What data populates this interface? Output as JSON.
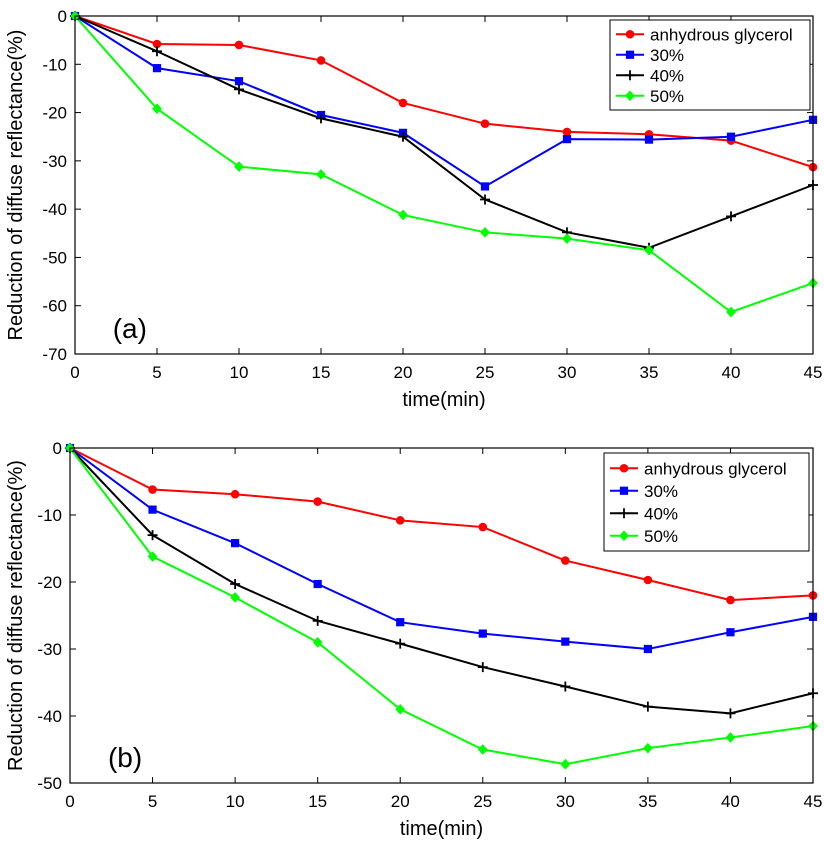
{
  "chart_data": [
    {
      "type": "line",
      "panel_label": "(a)",
      "xlabel": "time(min)",
      "ylabel": "Reduction of diffuse reflectance(%)",
      "x": [
        0,
        5,
        10,
        15,
        20,
        25,
        30,
        35,
        40,
        45
      ],
      "xlim": [
        0,
        45
      ],
      "ylim": [
        -70,
        0
      ],
      "xticks": [
        "0",
        "5",
        "10",
        "15",
        "20",
        "25",
        "30",
        "35",
        "40",
        "45"
      ],
      "yticks": [
        "0",
        "-10",
        "-20",
        "-30",
        "-40",
        "-50",
        "-60",
        "-70"
      ],
      "grid": false,
      "legend_position": "top-right",
      "series": [
        {
          "name": "anhydrous glycerol",
          "color": "#ff0000",
          "marker": "circle",
          "values": [
            0,
            -5.8,
            -6,
            -9.2,
            -18,
            -22.3,
            -24,
            -24.5,
            -25.8,
            -31.3
          ]
        },
        {
          "name": "30%",
          "color": "#0000ff",
          "marker": "square",
          "values": [
            0,
            -10.8,
            -13.5,
            -20.5,
            -24.2,
            -35.3,
            -25.5,
            -25.6,
            -25,
            -21.5
          ]
        },
        {
          "name": "40%",
          "color": "#000000",
          "marker": "plus",
          "values": [
            0,
            -7.3,
            -15.2,
            -21.2,
            -25,
            -38,
            -44.8,
            -48,
            -41.5,
            -35
          ]
        },
        {
          "name": "50%",
          "color": "#00ff00",
          "marker": "diamond",
          "values": [
            0,
            -19.2,
            -31.2,
            -32.8,
            -41.2,
            -44.8,
            -46.1,
            -48.5,
            -61.3,
            -55.3
          ]
        }
      ]
    },
    {
      "type": "line",
      "panel_label": "(b)",
      "xlabel": "time(min)",
      "ylabel": "Reduction of diffuse reflectance(%)",
      "x": [
        0,
        5,
        10,
        15,
        20,
        25,
        30,
        35,
        40,
        45
      ],
      "xlim": [
        0,
        45
      ],
      "ylim": [
        -50,
        0
      ],
      "xticks": [
        "0",
        "5",
        "10",
        "15",
        "20",
        "25",
        "30",
        "35",
        "40",
        "45"
      ],
      "yticks": [
        "0",
        "-10",
        "-20",
        "-30",
        "-40",
        "-50"
      ],
      "grid": false,
      "legend_position": "top-right",
      "series": [
        {
          "name": "anhydrous glycerol",
          "color": "#ff0000",
          "marker": "circle",
          "values": [
            0,
            -6.2,
            -6.9,
            -8,
            -10.8,
            -11.8,
            -16.8,
            -19.7,
            -22.7,
            -22
          ]
        },
        {
          "name": "30%",
          "color": "#0000ff",
          "marker": "square",
          "values": [
            0,
            -9.2,
            -14.2,
            -20.3,
            -26,
            -27.7,
            -28.9,
            -30,
            -27.5,
            -25.2
          ]
        },
        {
          "name": "40%",
          "color": "#000000",
          "marker": "plus",
          "values": [
            0,
            -13,
            -20.3,
            -25.8,
            -29.2,
            -32.7,
            -35.6,
            -38.6,
            -39.6,
            -36.6
          ]
        },
        {
          "name": "50%",
          "color": "#00ff00",
          "marker": "diamond",
          "values": [
            0,
            -16.2,
            -22.3,
            -29,
            -39,
            -45,
            -47.2,
            -44.8,
            -43.2,
            -41.5
          ]
        }
      ]
    }
  ]
}
